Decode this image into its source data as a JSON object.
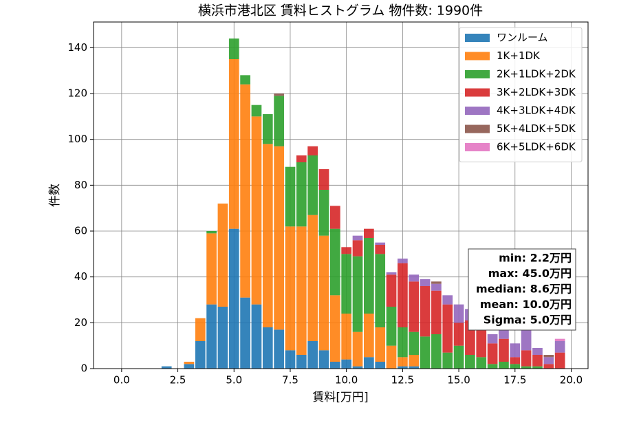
{
  "chart_data": {
    "type": "histogram",
    "stacked": true,
    "title": "横浜市港北区 賃料ヒストグラム  物件数: 1990件",
    "x_label": "賃料[万円]",
    "y_label": "件数",
    "bins": [
      -0.25,
      0.25,
      0.75,
      1.25,
      1.75,
      2.25,
      2.75,
      3.25,
      3.75,
      4.25,
      4.75,
      5.25,
      5.75,
      6.25,
      6.75,
      7.25,
      7.75,
      8.25,
      8.75,
      9.25,
      9.75,
      10.25,
      10.75,
      11.25,
      11.75,
      12.25,
      12.75,
      13.25,
      13.75,
      14.25,
      14.75,
      15.25,
      15.75,
      16.25,
      16.75,
      17.25,
      17.75,
      18.25,
      18.75,
      19.25,
      19.75
    ],
    "series": [
      {
        "name": "ワンルーム",
        "color": "#1f77b4",
        "values": [
          0,
          0,
          0,
          0,
          1,
          0,
          2,
          12,
          28,
          27,
          61,
          31,
          28,
          18,
          17,
          8,
          6,
          12,
          8,
          3,
          4,
          1,
          5,
          3,
          0,
          1,
          1,
          0,
          0,
          0,
          0,
          0,
          0,
          0,
          0,
          0,
          0,
          0,
          0,
          0
        ]
      },
      {
        "name": "1K+1DK",
        "color": "#ff7f0e",
        "values": [
          0,
          0,
          0,
          0,
          0,
          0,
          1,
          10,
          31,
          45,
          74,
          93,
          82,
          80,
          80,
          54,
          56,
          55,
          50,
          29,
          20,
          15,
          19,
          15,
          10,
          4,
          5,
          0,
          0,
          0,
          0,
          0,
          0,
          0,
          0,
          0,
          0,
          0,
          0,
          0
        ]
      },
      {
        "name": "2K+1LDK+2DK",
        "color": "#2ca02c",
        "values": [
          0,
          0,
          0,
          0,
          0,
          0,
          0,
          0,
          1,
          0,
          9,
          4,
          5,
          13,
          22,
          26,
          28,
          26,
          20,
          29,
          26,
          33,
          33,
          32,
          17,
          13,
          10,
          14,
          15,
          7,
          10,
          6,
          5,
          2,
          3,
          2,
          1,
          1,
          0,
          0
        ]
      },
      {
        "name": "3K+2LDK+3DK",
        "color": "#d62728",
        "values": [
          0,
          0,
          0,
          0,
          0,
          0,
          0,
          0,
          0,
          0,
          0,
          0,
          0,
          0,
          0,
          0,
          3,
          4,
          9,
          10,
          3,
          7,
          4,
          4,
          14,
          28,
          22,
          22,
          19,
          21,
          10,
          15,
          12,
          9,
          10,
          3,
          7,
          5,
          2,
          7
        ]
      },
      {
        "name": "4K+3LDK+4DK",
        "color": "#9467bd",
        "values": [
          0,
          0,
          0,
          0,
          0,
          0,
          0,
          0,
          0,
          0,
          0,
          0,
          0,
          0,
          0,
          0,
          0,
          0,
          0,
          0,
          0,
          2,
          0,
          1,
          1,
          2,
          3,
          3,
          3,
          4,
          8,
          5,
          6,
          4,
          5,
          6,
          10,
          3,
          3,
          5
        ]
      },
      {
        "name": "5K+4LDK+5DK",
        "color": "#8c564b",
        "values": [
          0,
          0,
          0,
          0,
          0,
          0,
          0,
          0,
          0,
          0,
          0,
          0,
          0,
          0,
          1,
          0,
          0,
          0,
          0,
          0,
          0,
          0,
          0,
          0,
          0,
          0,
          0,
          0,
          1,
          0,
          0,
          0,
          0,
          0,
          0,
          0,
          0,
          0,
          1,
          0
        ]
      },
      {
        "name": "6K+5LDK+6DK",
        "color": "#e377c2",
        "values": [
          0,
          0,
          0,
          0,
          0,
          0,
          0,
          0,
          0,
          0,
          0,
          0,
          0,
          0,
          0,
          0,
          0,
          0,
          0,
          0,
          0,
          0,
          0,
          0,
          0,
          0,
          0,
          0,
          0,
          0,
          0,
          0,
          0,
          0,
          0,
          0,
          0,
          0,
          0,
          1
        ]
      }
    ],
    "xlim": [
      -1.25,
      20.75
    ],
    "ylim": [
      0,
      151.2
    ],
    "xticks": [
      {
        "value": 0,
        "label": "0.0"
      },
      2.5,
      {
        "value": 5,
        "label": "5.0"
      },
      7.5,
      {
        "value": 10,
        "label": "10.0"
      },
      12.5,
      {
        "value": 15,
        "label": "15.0"
      },
      17.5,
      {
        "value": 20,
        "label": "20.0"
      }
    ],
    "yticks": [
      0,
      20,
      40,
      60,
      80,
      100,
      120,
      140
    ],
    "grid": true,
    "legend": "upper right",
    "stats": [
      "min: 2.2万円",
      "max: 45.0万円",
      "median: 8.6万円",
      "mean: 10.0万円",
      "Sigma: 5.0万円"
    ]
  }
}
